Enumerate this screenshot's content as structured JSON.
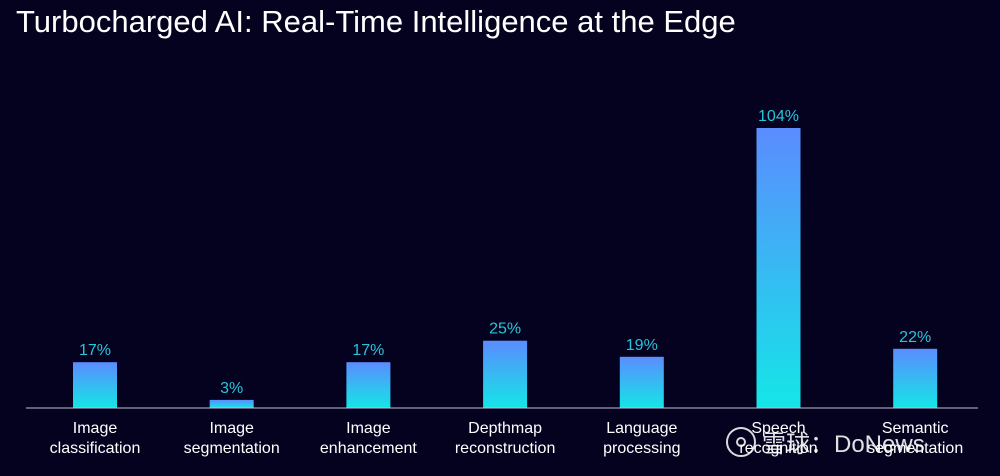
{
  "header": {
    "title": "Turbocharged AI: Real-Time Intelligence at the Edge"
  },
  "colors": {
    "background": "#05021f",
    "bar_top": "#5b8cff",
    "bar_bottom": "#14e6e6",
    "value_label": "#27c4dc",
    "axis": "#bfbfd0"
  },
  "chart_data": {
    "type": "bar",
    "title": "Turbocharged AI: Real-Time Intelligence at the Edge",
    "xlabel": "",
    "ylabel": "",
    "categories": [
      "Image\nclassification",
      "Image\nsegmentation",
      "Image\nenhancement",
      "Depthmap\nreconstruction",
      "Language\nprocessing",
      "Speech\nrecognition",
      "Semantic\nsegmentation"
    ],
    "values": [
      17,
      3,
      17,
      25,
      19,
      104,
      22
    ],
    "data_labels": [
      "17%",
      "3%",
      "17%",
      "25%",
      "19%",
      "104%",
      "22%"
    ],
    "ylim": [
      0,
      104
    ],
    "grid": false,
    "legend": "none"
  },
  "watermark": {
    "text": "雪球：DoNews"
  }
}
